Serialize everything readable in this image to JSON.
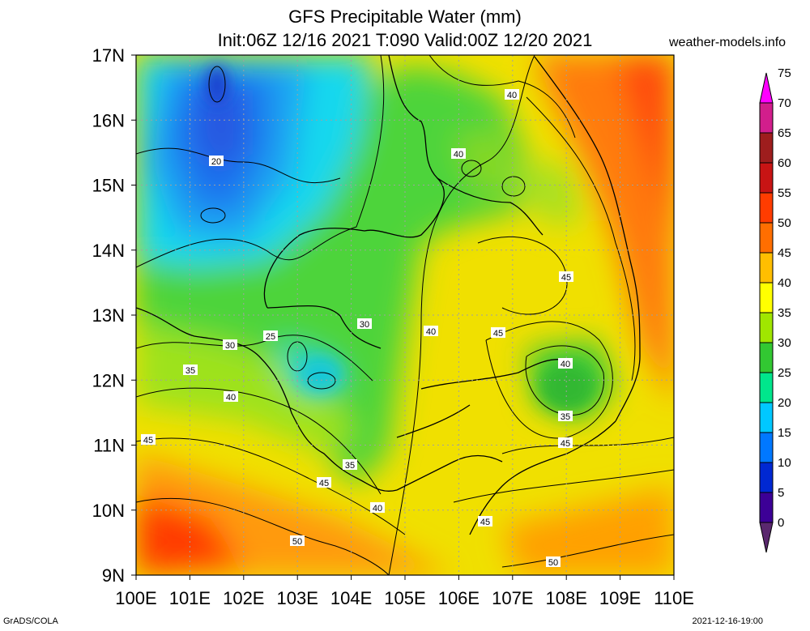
{
  "header": {
    "title_line1": "GFS Precipitable Water (mm)",
    "title_line2": "Init:06Z 12/16 2021 T:090 Valid:00Z 12/20 2021",
    "site": "weather-models.info"
  },
  "footer": {
    "left": "GrADS/COLA",
    "right": "2021-12-16-19:00"
  },
  "map": {
    "lat_labels": [
      "17N",
      "16N",
      "15N",
      "14N",
      "13N",
      "12N",
      "11N",
      "10N",
      "9N"
    ],
    "lon_labels": [
      "100E",
      "101E",
      "102E",
      "103E",
      "104E",
      "105E",
      "106E",
      "107E",
      "108E",
      "109E",
      "110E"
    ],
    "contour_labels": [
      "20",
      "25",
      "30",
      "30",
      "35",
      "35",
      "35",
      "40",
      "40",
      "40",
      "40",
      "40",
      "40",
      "45",
      "45",
      "45",
      "45",
      "45",
      "45",
      "50",
      "50"
    ]
  },
  "colorbar": {
    "labels": [
      "75",
      "70",
      "65",
      "60",
      "55",
      "50",
      "45",
      "40",
      "35",
      "30",
      "25",
      "20",
      "15",
      "10",
      "5",
      "0"
    ],
    "colors": [
      "#ff00ff",
      "#d21e8c",
      "#9e1d1d",
      "#c81414",
      "#ff3c00",
      "#ff6e00",
      "#ffbe00",
      "#ffff00",
      "#a0e600",
      "#32c832",
      "#00e68c",
      "#00c8ff",
      "#0078ff",
      "#0028d2",
      "#3c0096",
      "#5a286e"
    ]
  }
}
